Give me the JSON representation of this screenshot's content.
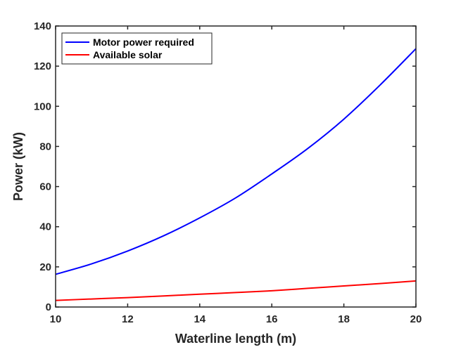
{
  "chart_data": {
    "type": "line",
    "title": "",
    "xlabel": "Waterline length (m)",
    "ylabel": "Power (kW)",
    "xlim": [
      10,
      20
    ],
    "ylim": [
      0,
      140
    ],
    "xticks": [
      10,
      12,
      14,
      16,
      18,
      20
    ],
    "yticks": [
      0,
      20,
      40,
      60,
      80,
      100,
      120,
      140
    ],
    "grid": false,
    "legend_position": "top-left",
    "x": [
      10,
      11,
      12,
      13,
      14,
      15,
      16,
      17,
      18,
      19,
      20
    ],
    "series": [
      {
        "name": "Motor power required",
        "color": "#0000ff",
        "values": [
          16.3,
          21.5,
          27.9,
          35.5,
          44.4,
          54.4,
          66.3,
          79.0,
          93.6,
          110.5,
          128.7
        ]
      },
      {
        "name": "Available solar",
        "color": "#ff0000",
        "values": [
          3.3,
          4.0,
          4.7,
          5.5,
          6.4,
          7.2,
          8.1,
          9.3,
          10.5,
          11.7,
          13.0
        ]
      }
    ]
  }
}
